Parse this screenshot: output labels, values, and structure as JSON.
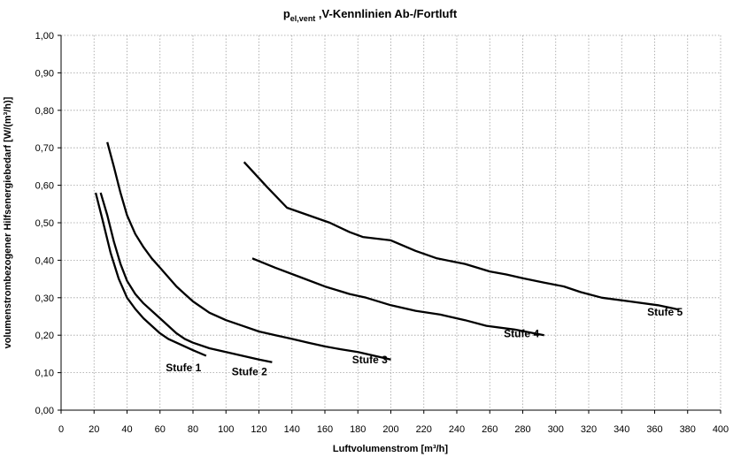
{
  "chart_data": {
    "type": "line",
    "title": {
      "main": "p",
      "subscript": "el,vent",
      "rest": " ,V-Kennlinien Ab-/Fortluft"
    },
    "xlabel": "Luftvolumenstrom [m³/h]",
    "ylabel": "volumenstrombezogener Hilfsenergiebedarf [W/(m³/h)]",
    "xlim": [
      0,
      400
    ],
    "ylim": [
      0,
      1.0
    ],
    "x_ticks": [
      "0",
      "20",
      "40",
      "60",
      "80",
      "100",
      "120",
      "140",
      "160",
      "180",
      "200",
      "220",
      "240",
      "260",
      "280",
      "300",
      "320",
      "340",
      "360",
      "380",
      "400"
    ],
    "y_ticks": [
      "0,00",
      "0,10",
      "0,20",
      "0,30",
      "0,40",
      "0,50",
      "0,60",
      "0,70",
      "0,80",
      "0,90",
      "1,00"
    ],
    "grid": true,
    "series": [
      {
        "name": "Stufe 1",
        "x": [
          21,
          25,
          30,
          35,
          40,
          45,
          50,
          55,
          60,
          65,
          70,
          75,
          80,
          88
        ],
        "y": [
          0.58,
          0.51,
          0.42,
          0.35,
          0.3,
          0.27,
          0.245,
          0.225,
          0.205,
          0.19,
          0.18,
          0.17,
          0.16,
          0.145
        ]
      },
      {
        "name": "Stufe 2",
        "x": [
          24,
          28,
          32,
          36,
          40,
          45,
          50,
          55,
          60,
          65,
          70,
          75,
          80,
          90,
          100,
          110,
          120,
          128
        ],
        "y": [
          0.58,
          0.52,
          0.45,
          0.39,
          0.345,
          0.31,
          0.285,
          0.265,
          0.245,
          0.225,
          0.205,
          0.19,
          0.18,
          0.165,
          0.155,
          0.145,
          0.135,
          0.128
        ]
      },
      {
        "name": "Stufe 3",
        "x": [
          28,
          32,
          36,
          40,
          45,
          50,
          55,
          60,
          65,
          70,
          75,
          80,
          90,
          100,
          110,
          120,
          130,
          140,
          150,
          160,
          170,
          180,
          190,
          200
        ],
        "y": [
          0.715,
          0.65,
          0.58,
          0.52,
          0.47,
          0.435,
          0.405,
          0.38,
          0.355,
          0.33,
          0.31,
          0.29,
          0.26,
          0.24,
          0.225,
          0.21,
          0.2,
          0.19,
          0.18,
          0.17,
          0.162,
          0.155,
          0.145,
          0.135
        ]
      },
      {
        "name": "Stufe 4",
        "x": [
          116,
          130,
          145,
          160,
          175,
          185,
          200,
          215,
          230,
          245,
          258,
          275,
          293
        ],
        "y": [
          0.405,
          0.38,
          0.355,
          0.33,
          0.31,
          0.3,
          0.28,
          0.265,
          0.255,
          0.24,
          0.225,
          0.215,
          0.2
        ]
      },
      {
        "name": "Stufe 5",
        "x": [
          111,
          125,
          137,
          150,
          163,
          175,
          183,
          200,
          215,
          228,
          245,
          260,
          270,
          280,
          293,
          305,
          315,
          328,
          345,
          362,
          375
        ],
        "y": [
          0.662,
          0.595,
          0.54,
          0.52,
          0.5,
          0.475,
          0.462,
          0.453,
          0.425,
          0.405,
          0.39,
          0.37,
          0.362,
          0.352,
          0.34,
          0.33,
          0.315,
          0.3,
          0.29,
          0.28,
          0.268
        ]
      }
    ]
  }
}
